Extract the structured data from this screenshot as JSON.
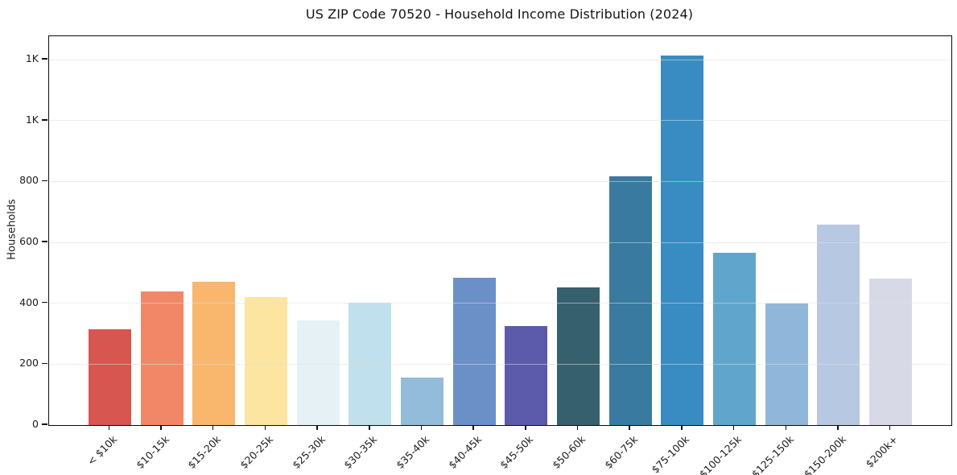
{
  "page": {
    "background": "#ffffff"
  },
  "chart_data": {
    "type": "bar",
    "title": "US ZIP Code 70520 - Household Income Distribution (2024)",
    "xlabel": "",
    "ylabel": "Households",
    "categories": [
      "< $10k",
      "$10-15k",
      "$15-20k",
      "$20-25k",
      "$25-30k",
      "$30-35k",
      "$35-40k",
      "$40-45k",
      "$45-50k",
      "$50-60k",
      "$60-75k",
      "$75-100k",
      "$100-125k",
      "$125-150k",
      "$150-200k",
      "$200k+"
    ],
    "values": [
      315,
      440,
      470,
      420,
      345,
      403,
      157,
      485,
      326,
      453,
      817,
      1213,
      567,
      400,
      658,
      481
    ],
    "bar_colors": [
      "#d7564f",
      "#f28767",
      "#f9b76e",
      "#fce5a0",
      "#e6f1f5",
      "#bfe0ec",
      "#92bcda",
      "#6b90c7",
      "#5b5aab",
      "#37606f",
      "#387aa0",
      "#388cc2",
      "#60a6cc",
      "#90b7d9",
      "#b6c8e2",
      "#d8d9e6"
    ],
    "ylim": [
      0,
      1277
    ],
    "yticks": [
      0,
      200,
      400,
      600,
      800,
      1000,
      1200
    ],
    "ytick_labels": [
      "0",
      "200",
      "400",
      "600",
      "800",
      "1K",
      "1K"
    ],
    "grid": "horizontal",
    "legend": "none",
    "axis_color": "#0d0d0d",
    "grid_color": "#dedede",
    "text_color": "#1c1c1c"
  }
}
